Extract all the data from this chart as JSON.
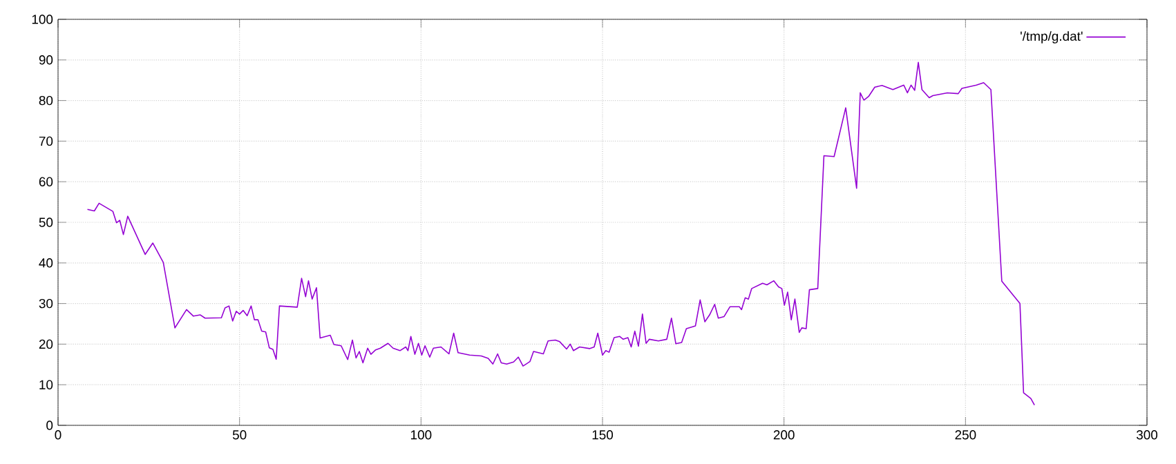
{
  "chart_data": {
    "type": "line",
    "x": [
      8.1,
      10,
      11.3,
      15.1,
      16.1,
      17,
      18,
      19.2,
      24,
      26.1,
      29,
      32.2,
      35.4,
      37.3,
      39.2,
      40.5,
      45,
      46,
      47.1,
      48.1,
      49.1,
      50,
      51,
      52.1,
      53.2,
      54.1,
      55.1,
      56.1,
      57.2,
      58.2,
      59.2,
      60.1,
      61,
      65.9,
      67.1,
      68.2,
      69,
      70,
      71.2,
      72.2,
      75,
      76,
      78,
      79.8,
      81.1,
      82.1,
      83,
      84,
      85.3,
      86.2,
      87.5,
      88.8,
      90.9,
      92.3,
      94.2,
      95.8,
      96.4,
      97.2,
      98.3,
      99.3,
      100.2,
      101.1,
      102.4,
      103.4,
      105.5,
      107.7,
      109,
      110.2,
      113.4,
      116.6,
      118.5,
      119.8,
      121.1,
      122.1,
      123.6,
      125.5,
      126.8,
      128.1,
      130,
      131,
      133.7,
      135,
      137,
      138.2,
      140.1,
      141.1,
      142,
      143.7,
      146.5,
      147.7,
      148.7,
      150,
      150.9,
      151.8,
      153.2,
      154.7,
      155.7,
      157,
      157.9,
      158.9,
      159.9,
      161,
      162,
      162.9,
      165.4,
      167.7,
      169,
      170.2,
      171.8,
      173.1,
      175.6,
      176.9,
      178.2,
      179.5,
      180.9,
      181.9,
      183.5,
      185.1,
      187.7,
      188.3,
      189.3,
      190.2,
      191.1,
      194.1,
      195.3,
      197.2,
      198.5,
      199.4,
      200.1,
      201,
      202,
      203,
      204.2,
      204.9,
      206.1,
      207,
      209.3,
      211,
      213.8,
      217,
      220,
      221,
      222,
      223.3,
      225,
      227,
      230,
      233,
      234,
      235,
      236,
      237,
      238,
      240,
      241,
      245,
      248,
      249,
      253,
      255,
      257,
      260,
      265,
      266,
      268,
      269
    ],
    "series": [
      {
        "name": "'/tmp/g.dat'",
        "color": "#9400d3",
        "values": [
          53.2,
          52.8,
          54.7,
          52.7,
          49.9,
          50.5,
          47,
          51.5,
          42.1,
          44.9,
          40.1,
          24,
          28.5,
          26.9,
          27.2,
          26.4,
          26.5,
          28.9,
          29.4,
          25.7,
          28.1,
          27.4,
          28.3,
          27,
          29.4,
          26,
          26,
          23.2,
          23,
          19.1,
          18.7,
          16.3,
          29.4,
          29.1,
          36.2,
          31.7,
          35.6,
          31.1,
          33.9,
          21.5,
          22.2,
          19.9,
          19.6,
          16.2,
          21,
          16.6,
          18.2,
          15.4,
          19,
          17.5,
          18.6,
          19,
          20.2,
          19,
          18.4,
          19.3,
          18.4,
          21.9,
          17.5,
          20.2,
          17.3,
          19.6,
          16.8,
          19,
          19.3,
          17.6,
          22.7,
          17.9,
          17.3,
          17.1,
          16.5,
          15.1,
          17.6,
          15.4,
          15.1,
          15.6,
          16.8,
          14.6,
          15.7,
          18.2,
          17.6,
          20.8,
          21,
          20.6,
          18.8,
          20,
          18.4,
          19.3,
          18.9,
          19.3,
          22.7,
          17.3,
          18.4,
          18,
          21.6,
          21.9,
          21.2,
          21.6,
          19.3,
          23.2,
          19.5,
          27.4,
          20.2,
          21.2,
          20.8,
          21.2,
          26.4,
          20.1,
          20.4,
          23.8,
          24.5,
          30.9,
          25.5,
          27.2,
          29.8,
          26.4,
          26.8,
          29.2,
          29.2,
          28.5,
          31.4,
          31.1,
          33.7,
          35,
          34.6,
          35.6,
          34.1,
          33.7,
          29.6,
          32.8,
          26,
          31.1,
          22.9,
          24,
          23.8,
          33.4,
          33.7,
          66.4,
          66.2,
          78.2,
          58.4,
          81.9,
          80.1,
          81,
          83.3,
          83.7,
          82.7,
          83.8,
          81.9,
          83.8,
          82.5,
          89.4,
          82.7,
          80.7,
          81.2,
          81.9,
          81.7,
          83,
          83.8,
          84.4,
          82.7,
          35.5,
          30,
          8,
          6.6,
          5
        ]
      }
    ],
    "xlim": [
      0,
      300
    ],
    "ylim": [
      0,
      100
    ],
    "xticks": [
      0,
      50,
      100,
      150,
      200,
      250,
      300
    ],
    "yticks": [
      0,
      10,
      20,
      30,
      40,
      50,
      60,
      70,
      80,
      90,
      100
    ],
    "grid": true,
    "legend": "top right"
  }
}
